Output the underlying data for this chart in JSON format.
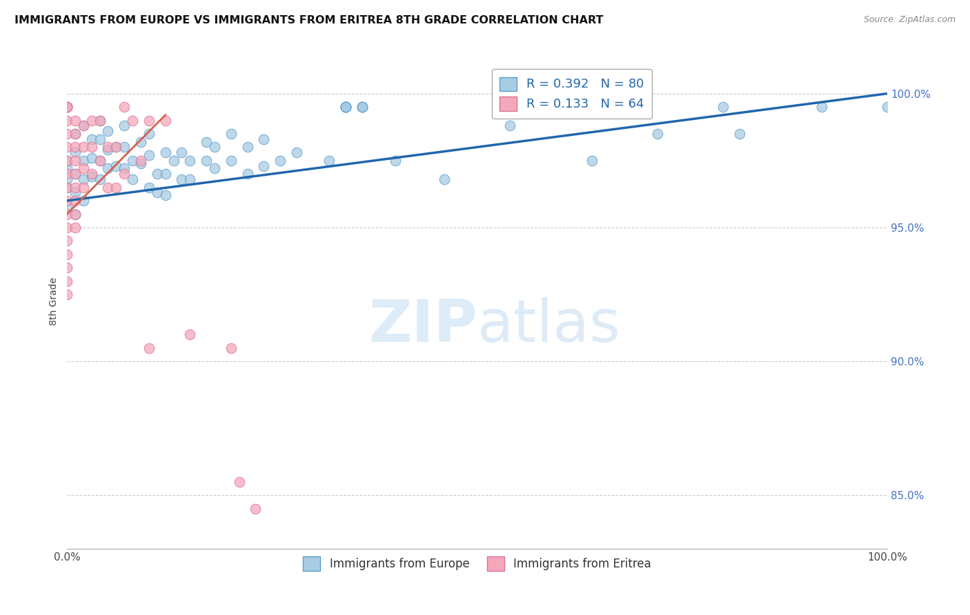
{
  "title": "IMMIGRANTS FROM EUROPE VS IMMIGRANTS FROM ERITREA 8TH GRADE CORRELATION CHART",
  "source": "Source: ZipAtlas.com",
  "ylabel": "8th Grade",
  "xlim": [
    0.0,
    1.0
  ],
  "ylim": [
    83.0,
    101.5
  ],
  "ytick_positions": [
    85.0,
    90.0,
    95.0,
    100.0
  ],
  "ytick_labels": [
    "85.0%",
    "90.0%",
    "95.0%",
    "100.0%"
  ],
  "color_europe": "#a8cce4",
  "color_eritrea": "#f4a8bc",
  "color_europe_edge": "#5b9dc9",
  "color_eritrea_edge": "#e07090",
  "color_europe_line": "#2166ac",
  "color_eritrea_line": "#d6604d",
  "color_europe_legend": "#a8cce4",
  "color_eritrea_legend": "#f4a8bc",
  "watermark_color": "#d5e8f5",
  "europe_x": [
    0.0,
    0.0,
    0.0,
    0.0,
    0.0,
    0.01,
    0.01,
    0.01,
    0.01,
    0.01,
    0.02,
    0.02,
    0.02,
    0.02,
    0.03,
    0.03,
    0.03,
    0.04,
    0.04,
    0.04,
    0.04,
    0.05,
    0.05,
    0.05,
    0.06,
    0.06,
    0.07,
    0.07,
    0.07,
    0.08,
    0.08,
    0.09,
    0.09,
    0.1,
    0.1,
    0.1,
    0.11,
    0.11,
    0.12,
    0.12,
    0.12,
    0.13,
    0.14,
    0.14,
    0.15,
    0.15,
    0.17,
    0.17,
    0.18,
    0.18,
    0.2,
    0.2,
    0.22,
    0.22,
    0.24,
    0.24,
    0.26,
    0.28,
    0.32,
    0.34,
    0.34,
    0.34,
    0.34,
    0.34,
    0.34,
    0.36,
    0.36,
    0.36,
    0.36,
    0.4,
    0.46,
    0.54,
    0.64,
    0.72,
    0.8,
    0.82,
    0.92,
    1.0
  ],
  "europe_y": [
    97.2,
    96.5,
    95.8,
    96.8,
    97.5,
    98.5,
    97.8,
    97.0,
    96.3,
    95.5,
    98.8,
    97.5,
    96.8,
    96.0,
    98.3,
    97.6,
    96.9,
    99.0,
    98.3,
    97.5,
    96.8,
    98.6,
    97.9,
    97.2,
    98.0,
    97.3,
    98.8,
    98.0,
    97.2,
    97.5,
    96.8,
    98.2,
    97.4,
    98.5,
    97.7,
    96.5,
    97.0,
    96.3,
    97.8,
    97.0,
    96.2,
    97.5,
    97.8,
    96.8,
    97.5,
    96.8,
    98.2,
    97.5,
    98.0,
    97.2,
    98.5,
    97.5,
    98.0,
    97.0,
    98.3,
    97.3,
    97.5,
    97.8,
    97.5,
    99.5,
    99.5,
    99.5,
    99.5,
    99.5,
    99.5,
    99.5,
    99.5,
    99.5,
    99.5,
    97.5,
    96.8,
    98.8,
    97.5,
    98.5,
    99.5,
    98.5,
    99.5,
    99.5
  ],
  "eritrea_x": [
    0.0,
    0.0,
    0.0,
    0.0,
    0.0,
    0.0,
    0.0,
    0.0,
    0.0,
    0.0,
    0.0,
    0.0,
    0.0,
    0.0,
    0.0,
    0.0,
    0.0,
    0.0,
    0.0,
    0.01,
    0.01,
    0.01,
    0.01,
    0.01,
    0.01,
    0.01,
    0.01,
    0.01,
    0.02,
    0.02,
    0.02,
    0.02,
    0.03,
    0.03,
    0.03,
    0.04,
    0.04,
    0.05,
    0.05,
    0.06,
    0.06,
    0.07,
    0.07,
    0.08,
    0.09,
    0.1,
    0.1,
    0.12,
    0.15,
    0.2,
    0.21,
    0.23
  ],
  "eritrea_y": [
    99.5,
    99.5,
    99.5,
    99.5,
    99.5,
    99.0,
    98.5,
    98.0,
    97.5,
    97.0,
    96.5,
    96.0,
    95.5,
    95.0,
    94.5,
    94.0,
    93.5,
    93.0,
    92.5,
    99.0,
    98.5,
    98.0,
    97.5,
    97.0,
    96.5,
    96.0,
    95.5,
    95.0,
    98.8,
    98.0,
    97.2,
    96.5,
    99.0,
    98.0,
    97.0,
    99.0,
    97.5,
    98.0,
    96.5,
    98.0,
    96.5,
    99.5,
    97.0,
    99.0,
    97.5,
    99.0,
    90.5,
    99.0,
    91.0,
    90.5,
    85.5,
    84.5
  ],
  "europe_line_x": [
    0.0,
    1.0
  ],
  "europe_line_y": [
    96.0,
    100.0
  ],
  "eritrea_line_x": [
    0.0,
    0.12
  ],
  "eritrea_line_y": [
    95.5,
    99.2
  ]
}
